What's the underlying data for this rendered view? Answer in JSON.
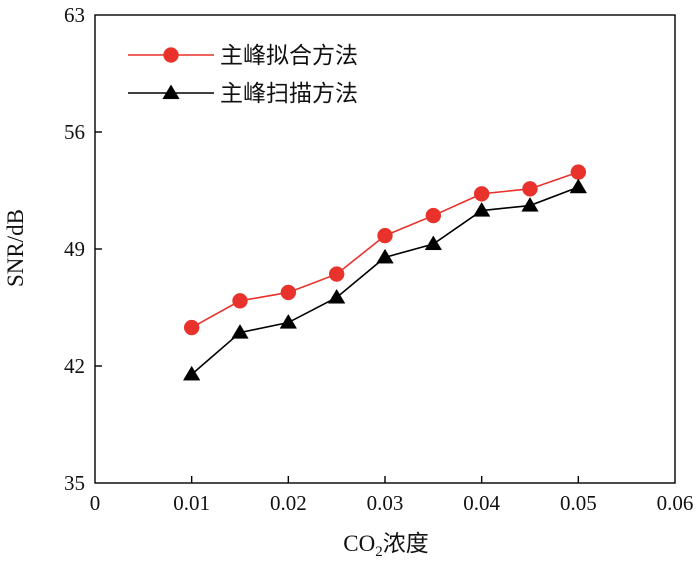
{
  "chart_data": {
    "type": "line",
    "title": "",
    "xlabel": {
      "main": "CO",
      "sub": "2",
      "suffix": "浓度"
    },
    "ylabel": "SNR/dB",
    "xlim": [
      0,
      0.06
    ],
    "ylim": [
      35,
      63
    ],
    "x_ticks": [
      0,
      0.01,
      0.02,
      0.03,
      0.04,
      0.05,
      0.06
    ],
    "x_tick_labels": [
      "0",
      "0.01",
      "0.02",
      "0.03",
      "0.04",
      "0.05",
      "0.06"
    ],
    "y_ticks": [
      35,
      42,
      49,
      56,
      63
    ],
    "y_tick_labels": [
      "35",
      "42",
      "49",
      "56",
      "63"
    ],
    "grid": false,
    "legend_position": "top-left",
    "x": [
      0.01,
      0.015,
      0.02,
      0.025,
      0.03,
      0.035,
      0.04,
      0.045,
      0.05
    ],
    "series": [
      {
        "name": "主峰拟合方法",
        "marker": "circle",
        "line_color": "#e8322b",
        "marker_color": "#e8322b",
        "values": [
          44.3,
          45.9,
          46.4,
          47.5,
          49.8,
          51.0,
          52.3,
          52.6,
          53.6
        ]
      },
      {
        "name": "主峰扫描方法",
        "marker": "triangle",
        "line_color": "#000000",
        "marker_color": "#000000",
        "values": [
          41.5,
          44.0,
          44.6,
          46.1,
          48.5,
          49.3,
          51.3,
          51.6,
          52.7
        ]
      }
    ]
  }
}
